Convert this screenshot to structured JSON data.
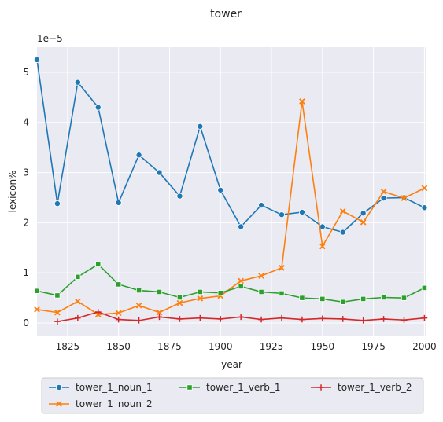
{
  "chart_data": {
    "type": "line",
    "title": "tower",
    "xlabel": "year",
    "ylabel": "lexicon%",
    "y_offset_label": "1e−5",
    "xlim": [
      1810,
      2001
    ],
    "ylim": [
      -0.25,
      5.5
    ],
    "x_ticks": [
      1825,
      1850,
      1875,
      1900,
      1925,
      1950,
      1975,
      2000
    ],
    "x_tick_labels": [
      "1825",
      "1850",
      "1875",
      "1900",
      "1925",
      "1950",
      "1975",
      "2000"
    ],
    "y_ticks": [
      0,
      1,
      2,
      3,
      4,
      5
    ],
    "y_tick_labels": [
      "0",
      "1",
      "2",
      "3",
      "4",
      "5"
    ],
    "grid": true,
    "legend_placement": "bottom-center-outside",
    "series": [
      {
        "name": "tower_1_noun_1",
        "color": "#1f77b4",
        "marker": "circle",
        "x": [
          1810,
          1820,
          1830,
          1840,
          1850,
          1860,
          1870,
          1880,
          1890,
          1900,
          1910,
          1920,
          1930,
          1940,
          1950,
          1960,
          1970,
          1980,
          1990,
          2000
        ],
        "y": [
          5.25,
          2.38,
          4.8,
          4.3,
          2.4,
          3.35,
          3.0,
          2.53,
          3.92,
          2.65,
          1.92,
          2.35,
          2.16,
          2.21,
          1.92,
          1.81,
          2.19,
          2.49,
          2.5,
          2.3
        ]
      },
      {
        "name": "tower_1_noun_2",
        "color": "#ff7f0e",
        "marker": "x",
        "x": [
          1810,
          1820,
          1830,
          1840,
          1850,
          1860,
          1870,
          1880,
          1890,
          1900,
          1910,
          1920,
          1930,
          1940,
          1950,
          1960,
          1970,
          1980,
          1990,
          2000
        ],
        "y": [
          0.27,
          0.21,
          0.43,
          0.17,
          0.2,
          0.35,
          0.21,
          0.4,
          0.49,
          0.54,
          0.84,
          0.94,
          1.1,
          4.42,
          1.53,
          2.23,
          2.01,
          2.62,
          2.49,
          2.69
        ]
      },
      {
        "name": "tower_1_verb_1",
        "color": "#2ca02c",
        "marker": "square",
        "x": [
          1810,
          1820,
          1830,
          1840,
          1850,
          1860,
          1870,
          1880,
          1890,
          1900,
          1910,
          1920,
          1930,
          1940,
          1950,
          1960,
          1970,
          1980,
          1990,
          2000
        ],
        "y": [
          0.64,
          0.55,
          0.92,
          1.17,
          0.77,
          0.65,
          0.62,
          0.51,
          0.62,
          0.6,
          0.73,
          0.62,
          0.59,
          0.5,
          0.48,
          0.42,
          0.48,
          0.51,
          0.5,
          0.7
        ]
      },
      {
        "name": "tower_1_verb_2",
        "color": "#d62728",
        "marker": "plus",
        "x": [
          1820,
          1830,
          1840,
          1850,
          1860,
          1870,
          1880,
          1890,
          1900,
          1910,
          1920,
          1930,
          1940,
          1950,
          1960,
          1970,
          1980,
          1990,
          2000
        ],
        "y": [
          0.03,
          0.1,
          0.22,
          0.07,
          0.05,
          0.12,
          0.08,
          0.1,
          0.08,
          0.12,
          0.07,
          0.1,
          0.07,
          0.09,
          0.08,
          0.05,
          0.08,
          0.06,
          0.1
        ]
      }
    ]
  }
}
